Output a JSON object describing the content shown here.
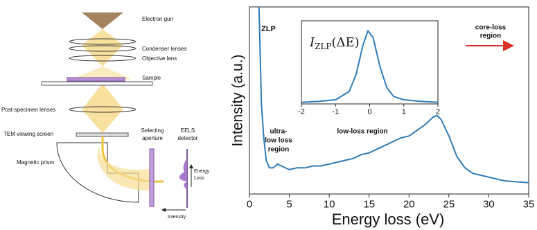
{
  "diagram": {
    "labels": {
      "gun": "Electron gun",
      "condenser": "Condenser lenses",
      "objective": "Objective lens",
      "sample": "Sample",
      "post": "Post-specimen lenses",
      "screen": "TEM viewing screen",
      "prism": "Magnetic prism",
      "aperture": [
        "Selecting",
        "aperture"
      ],
      "detector": [
        "EELS",
        "detector"
      ],
      "energy": [
        "Energy",
        "Loss"
      ],
      "intensity": "Intensity"
    }
  },
  "chart_data": [
    {
      "type": "line",
      "xlabel": "Energy loss (eV)",
      "ylabel": "Intensity (a.u.)",
      "annotations": {
        "zlp": "ZLP",
        "core": [
          "core-loss",
          "region"
        ],
        "ultra": [
          "ultra-",
          "low loss",
          "region"
        ],
        "low": "low-loss region"
      },
      "x": [
        1.2,
        1.5,
        1.8,
        2.1,
        2.5,
        3,
        3.5,
        4,
        5,
        6,
        7,
        8,
        9,
        10,
        11,
        12,
        13,
        14,
        15,
        16,
        17,
        18,
        19,
        20,
        21,
        22,
        23,
        23.5,
        24,
        25,
        26,
        27,
        28,
        29,
        30,
        32,
        35
      ],
      "values": [
        1.0,
        0.48,
        0.3,
        0.18,
        0.14,
        0.14,
        0.16,
        0.15,
        0.13,
        0.14,
        0.14,
        0.15,
        0.15,
        0.16,
        0.17,
        0.18,
        0.19,
        0.21,
        0.22,
        0.24,
        0.26,
        0.28,
        0.3,
        0.31,
        0.34,
        0.37,
        0.41,
        0.42,
        0.4,
        0.31,
        0.2,
        0.14,
        0.11,
        0.1,
        0.09,
        0.07,
        0.06
      ],
      "color": "#2f7bb8",
      "xlim": [
        0,
        35
      ],
      "ylim": [
        0,
        1
      ],
      "xticks": [
        0,
        5,
        10,
        15,
        20,
        25,
        30,
        35
      ]
    },
    {
      "type": "line",
      "label": {
        "main": "I",
        "sub": "ZLP",
        "arg": "(ΔE)"
      },
      "x": [
        -2,
        -1.5,
        -1,
        -0.6,
        -0.4,
        -0.2,
        -0.05,
        0.1,
        0.3,
        0.5,
        0.7,
        1,
        1.5,
        2
      ],
      "values": [
        0.02,
        0.03,
        0.05,
        0.15,
        0.35,
        0.7,
        0.88,
        0.8,
        0.45,
        0.2,
        0.09,
        0.05,
        0.03,
        0.02
      ],
      "color": "#2f7bb8",
      "xlim": [
        -2,
        2
      ],
      "ylim": [
        0,
        1
      ],
      "xticks": [
        -2,
        -1,
        0,
        1,
        2
      ]
    }
  ]
}
